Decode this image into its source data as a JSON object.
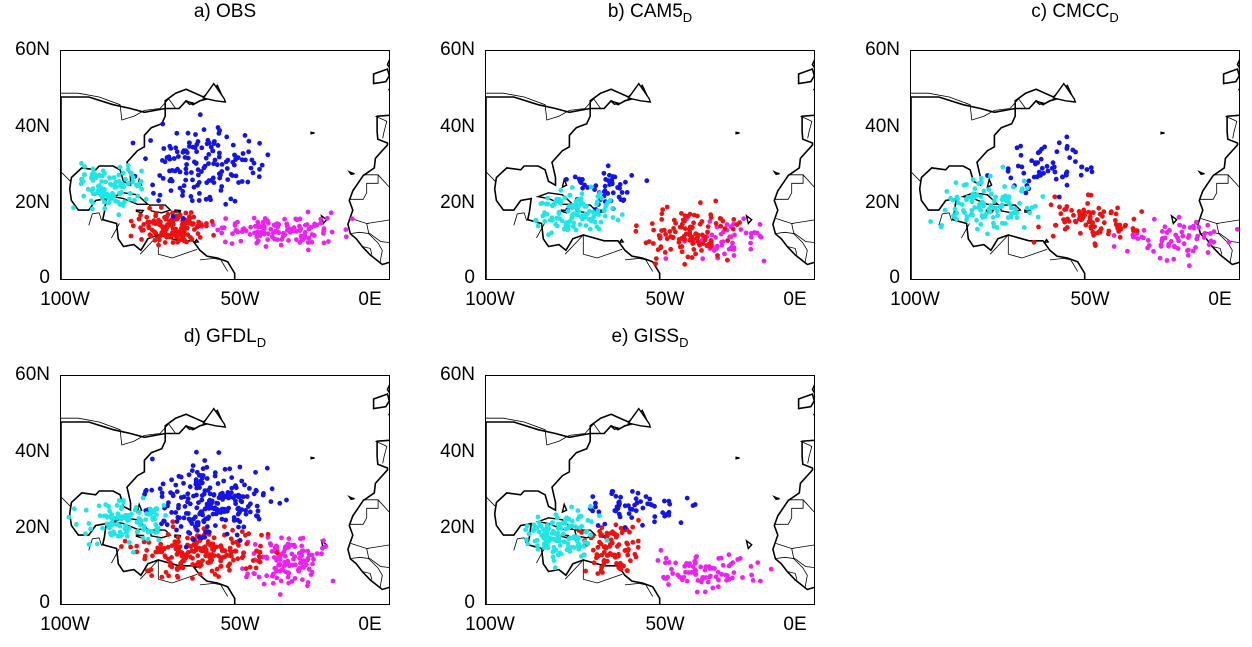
{
  "figure": {
    "panels": [
      {
        "id": "a",
        "title": "a) OBS",
        "title_sub": ""
      },
      {
        "id": "b",
        "title": "b) CAM5",
        "title_sub": "D"
      },
      {
        "id": "c",
        "title": "c) CMCC",
        "title_sub": "D"
      },
      {
        "id": "d",
        "title": "d) GFDL",
        "title_sub": "D"
      },
      {
        "id": "e",
        "title": "e) GISS",
        "title_sub": "D"
      }
    ],
    "y_ticks": [
      "60N",
      "40N",
      "20N",
      "0"
    ],
    "x_ticks": [
      "100W",
      "50W",
      "0E"
    ]
  },
  "chart_data": {
    "type": "scatter",
    "xlim": [
      -100,
      -5
    ],
    "ylim": [
      0,
      60
    ],
    "x_ticks": [
      -100,
      -50,
      0
    ],
    "y_ticks": [
      0,
      20,
      40,
      60
    ],
    "colors": {
      "blue": "#1414e6",
      "cyan": "#1ee6e6",
      "red": "#ee1111",
      "magenta": "#ee22ee"
    },
    "panels": [
      {
        "title": "a) OBS",
        "clusters": [
          {
            "color": "magenta",
            "n": 130,
            "lon": [
              -60,
              -15
            ],
            "lat": [
              8,
              18
            ],
            "note": ""
          },
          {
            "color": "red",
            "n": 150,
            "lon": [
              -82,
              -55
            ],
            "lat": [
              8,
              20
            ]
          },
          {
            "color": "blue",
            "n": 150,
            "lon": [
              -82,
              -35
            ],
            "lat": [
              16,
              45
            ]
          },
          {
            "color": "cyan",
            "n": 110,
            "lon": [
              -98,
              -75
            ],
            "lat": [
              17,
              32
            ]
          }
        ]
      },
      {
        "title": "b) CAM5 D",
        "clusters": [
          {
            "color": "magenta",
            "n": 60,
            "lon": [
              -50,
              -15
            ],
            "lat": [
              4,
              18
            ]
          },
          {
            "color": "red",
            "n": 110,
            "lon": [
              -60,
              -25
            ],
            "lat": [
              4,
              22
            ]
          },
          {
            "color": "blue",
            "n": 50,
            "lon": [
              -80,
              -50
            ],
            "lat": [
              16,
              32
            ]
          },
          {
            "color": "cyan",
            "n": 110,
            "lon": [
              -90,
              -60
            ],
            "lat": [
              10,
              25
            ]
          }
        ]
      },
      {
        "title": "c) CMCC D",
        "clusters": [
          {
            "color": "magenta",
            "n": 70,
            "lon": [
              -45,
              -5
            ],
            "lat": [
              4,
              18
            ]
          },
          {
            "color": "red",
            "n": 90,
            "lon": [
              -65,
              -30
            ],
            "lat": [
              8,
              23
            ]
          },
          {
            "color": "blue",
            "n": 60,
            "lon": [
              -80,
              -40
            ],
            "lat": [
              20,
              39
            ]
          },
          {
            "color": "cyan",
            "n": 110,
            "lon": [
              -97,
              -60
            ],
            "lat": [
              11,
              30
            ]
          }
        ]
      },
      {
        "title": "d) GFDL D",
        "clusters": [
          {
            "color": "magenta",
            "n": 120,
            "lon": [
              -50,
              -20
            ],
            "lat": [
              3,
              20
            ]
          },
          {
            "color": "red",
            "n": 200,
            "lon": [
              -85,
              -35
            ],
            "lat": [
              6,
              22
            ]
          },
          {
            "color": "blue",
            "n": 220,
            "lon": [
              -80,
              -35
            ],
            "lat": [
              14,
              41
            ]
          },
          {
            "color": "cyan",
            "n": 110,
            "lon": [
              -98,
              -65
            ],
            "lat": [
              14,
              30
            ]
          }
        ]
      },
      {
        "title": "e) GISS D",
        "clusters": [
          {
            "color": "magenta",
            "n": 80,
            "lon": [
              -58,
              -15
            ],
            "lat": [
              3,
              15
            ]
          },
          {
            "color": "red",
            "n": 90,
            "lon": [
              -75,
              -52
            ],
            "lat": [
              7,
              24
            ]
          },
          {
            "color": "blue",
            "n": 60,
            "lon": [
              -75,
              -38
            ],
            "lat": [
              20,
              32
            ]
          },
          {
            "color": "cyan",
            "n": 130,
            "lon": [
              -92,
              -65
            ],
            "lat": [
              10,
              28
            ]
          }
        ]
      }
    ]
  }
}
